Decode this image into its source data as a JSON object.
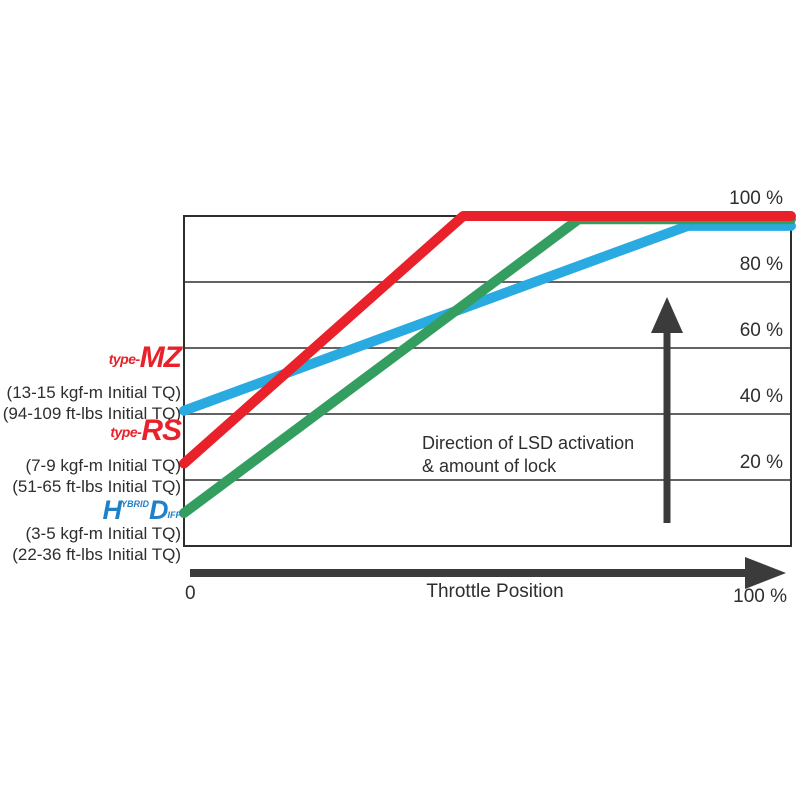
{
  "colors": {
    "background": "#ffffff",
    "series_red": "#e8212a",
    "series_green": "#349e60",
    "series_blue": "#29abe2",
    "grid": "#4d4d4d",
    "box_border": "#2e2e2e",
    "arrow": "#3b3b3b",
    "text": "#2e2e2e",
    "logo_red": "#e8212a",
    "logo_blue": "#2080c8"
  },
  "chart_data": {
    "type": "line",
    "xlabel": "Throttle Position",
    "x_start_label": "0",
    "x_end_label": "100 %",
    "xlim": [
      0,
      100
    ],
    "ylim": [
      0,
      100
    ],
    "grid": "horizontal",
    "y_ticks": [
      100,
      80,
      60,
      40,
      20
    ],
    "y_tick_labels": [
      "100 %",
      "80 %",
      "60 %",
      "40 %",
      "20 %"
    ],
    "legend_position": "left",
    "annotation": {
      "line1": "Direction of LSD activation",
      "line2": "& amount of lock"
    },
    "series": [
      {
        "name": "type-MZ",
        "color": "#29abe2",
        "points": [
          [
            0,
            41
          ],
          [
            83,
            97
          ],
          [
            100,
            97
          ]
        ]
      },
      {
        "name": "HYBRID DIFF",
        "color": "#349e60",
        "points": [
          [
            0,
            10
          ],
          [
            65,
            99
          ],
          [
            100,
            99
          ]
        ]
      },
      {
        "name": "type-RS",
        "color": "#e8212a",
        "points": [
          [
            0,
            25
          ],
          [
            46,
            100
          ],
          [
            100,
            100
          ]
        ]
      }
    ]
  },
  "legend": {
    "mz": {
      "prefix": "type-",
      "name": "MZ",
      "torque_kgf": "(13-15 kgf-m Initial TQ)",
      "torque_ftlbs": "(94-109 ft-lbs Initial TQ)"
    },
    "rs": {
      "prefix": "type-",
      "name": "RS",
      "torque_kgf": "(7-9 kgf-m Initial TQ)",
      "torque_ftlbs": "(51-65 ft-lbs Initial TQ)"
    },
    "hd": {
      "h": "H",
      "ybrid": "YBRID",
      "d": "D",
      "iff": "IFF",
      "torque_kgf": "(3-5 kgf-m Initial TQ)",
      "torque_ftlbs": "(22-36 ft-lbs Initial TQ)"
    }
  }
}
